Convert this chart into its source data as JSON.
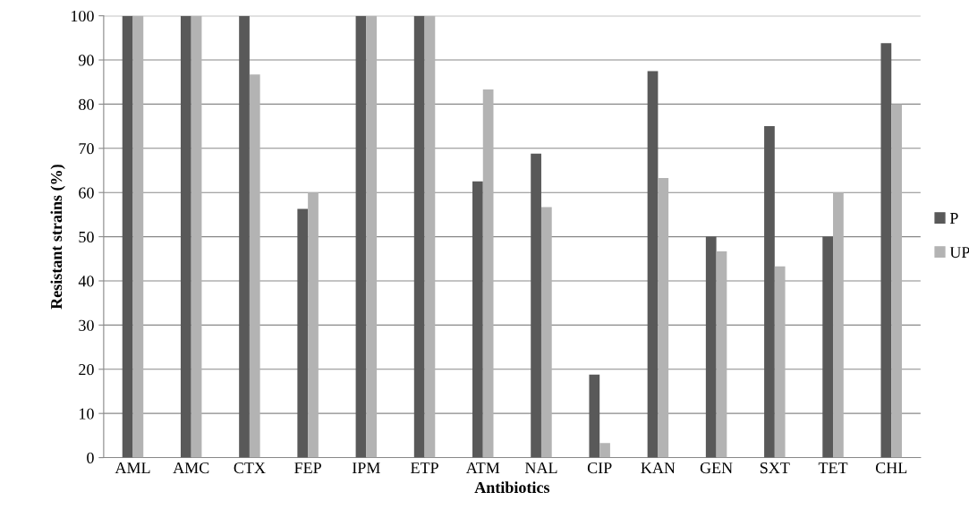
{
  "chart_data": {
    "type": "bar",
    "xlabel": "Antibiotics",
    "ylabel": "Resistant strains (%)",
    "categories": [
      "AML",
      "AMC",
      "CTX",
      "FEP",
      "IPM",
      "ETP",
      "ATM",
      "NAL",
      "CIP",
      "KAN",
      "GEN",
      "SXT",
      "TET",
      "CHL"
    ],
    "series": [
      {
        "name": "P",
        "color": "#595959",
        "values": [
          100,
          100,
          100,
          56.3,
          100,
          100,
          62.5,
          68.8,
          18.8,
          87.5,
          50,
          75,
          50,
          93.8
        ]
      },
      {
        "name": "UP",
        "color": "#b3b3b3",
        "values": [
          100,
          100,
          86.7,
          60,
          100,
          100,
          83.3,
          56.7,
          3.3,
          63.3,
          46.7,
          43.3,
          60,
          80
        ]
      }
    ],
    "ylim": [
      0,
      100
    ],
    "yticks": [
      0,
      10,
      20,
      30,
      40,
      50,
      60,
      70,
      80,
      90,
      100
    ],
    "grid": "y",
    "legend": "right"
  }
}
